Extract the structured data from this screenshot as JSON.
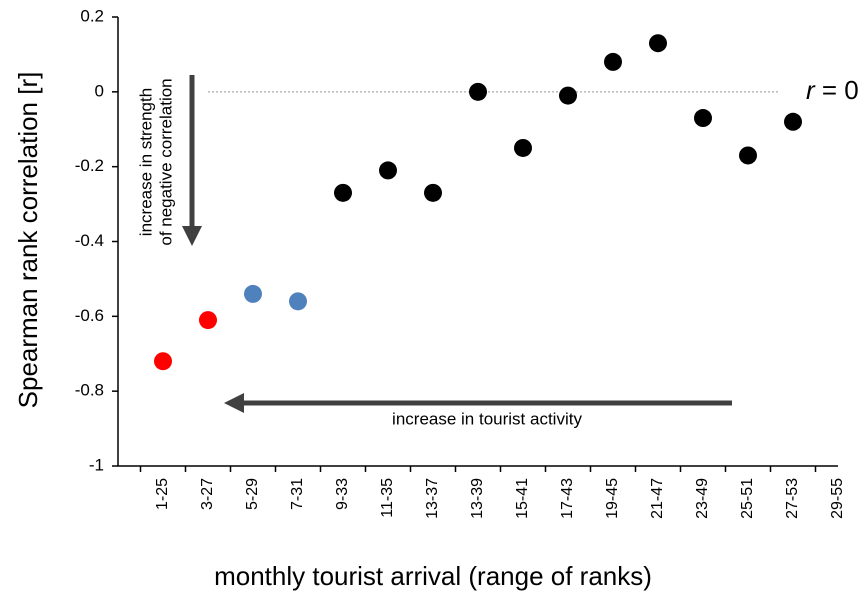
{
  "chart_data": {
    "type": "scatter",
    "x_label": "monthly tourist arrival (range of ranks)",
    "y_label": "Spearman rank correlation [r]",
    "categories": [
      "1-25",
      "3-27",
      "5-29",
      "7-31",
      "9-33",
      "11-35",
      "13-37",
      "13-39",
      "15-41",
      "17-43",
      "19-45",
      "21-47",
      "23-49",
      "25-51",
      "27-53",
      "29-55"
    ],
    "values": [
      -0.72,
      -0.61,
      -0.54,
      -0.56,
      -0.27,
      -0.21,
      -0.27,
      0.0,
      -0.15,
      -0.01,
      0.08,
      0.13,
      -0.07,
      -0.17,
      -0.08,
      null
    ],
    "colors": [
      "#ff0000",
      "#ff0000",
      "#4f81bd",
      "#4f81bd",
      "#000000",
      "#000000",
      "#000000",
      "#000000",
      "#000000",
      "#000000",
      "#000000",
      "#000000",
      "#000000",
      "#000000",
      "#000000",
      "#000000"
    ],
    "ylim": [
      -1,
      0.2
    ],
    "yticks": [
      0.2,
      0,
      -0.2,
      -0.4,
      -0.6,
      -0.8,
      -1
    ],
    "reference_line": {
      "value": 0,
      "label": "r = 0"
    },
    "annotations": [
      {
        "lines": [
          "increase in strength",
          "of negative correlation"
        ]
      },
      {
        "lines": [
          "increase in tourist activity"
        ]
      }
    ],
    "grid": false
  }
}
